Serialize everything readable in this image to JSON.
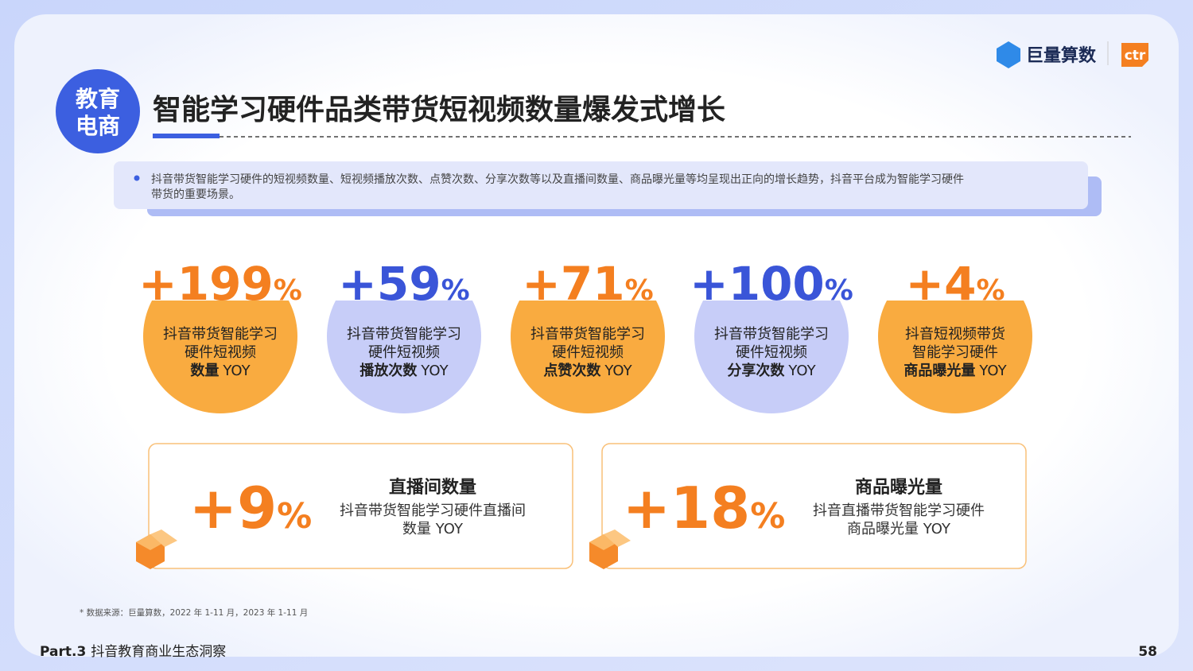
{
  "header": {
    "badge": [
      "教育",
      "电商"
    ],
    "title": "智能学习硬件品类带货短视频数量爆发式增长",
    "logo": "巨量算数",
    "logo2": "ctr"
  },
  "summary": [
    "抖音带货智能学习硬件的短视频数量、短视频播放次数、点赞次数、分享次数等以及直播间数量、商品曝光量等均呈现出正向的增长趋势，抖音平台成为智能学习硬件",
    "带货的重要场景。"
  ],
  "stats": [
    {
      "number": "+199",
      "unit": "%",
      "lines": [
        "抖音带货智能学习",
        "硬件短视频"
      ],
      "bold": "数量",
      "suffix": "YOY",
      "color": "#f47f20",
      "fill": "#f9ab40"
    },
    {
      "number": "+59",
      "unit": "%",
      "lines": [
        "抖音带货智能学习",
        "硬件短视频"
      ],
      "bold": "播放次数",
      "suffix": "YOY",
      "color": "#3a55d8",
      "fill": "#c7cdf8"
    },
    {
      "number": "+71",
      "unit": "%",
      "lines": [
        "抖音带货智能学习",
        "硬件短视频"
      ],
      "bold": "点赞次数",
      "suffix": "YOY",
      "color": "#f47f20",
      "fill": "#f9ab40"
    },
    {
      "number": "+100",
      "unit": "%",
      "lines": [
        "抖音带货智能学习",
        "硬件短视频"
      ],
      "bold": "分享次数",
      "suffix": "YOY",
      "color": "#3a55d8",
      "fill": "#c7cdf8"
    },
    {
      "number": "+4",
      "unit": "%",
      "lines": [
        "抖音短视频带货",
        "智能学习硬件"
      ],
      "bold": "商品曝光量",
      "suffix": "YOY",
      "color": "#f47f20",
      "fill": "#f9ab40"
    }
  ],
  "highlights": [
    {
      "number": "+9",
      "unit": "%",
      "title": "直播间数量",
      "lines": [
        "抖音带货智能学习硬件直播间",
        "数量 YOY"
      ]
    },
    {
      "number": "+18",
      "unit": "%",
      "title": "商品曝光量",
      "lines": [
        "抖音直播带货智能学习硬件",
        "商品曝光量 YOY"
      ]
    }
  ],
  "footnote": "* 数据来源：巨量算数，2022 年 1-11 月，2023 年 1-11 月",
  "footer": {
    "part": "Part.3",
    "section": "抖音教育商业生态洞察",
    "page": "58"
  }
}
